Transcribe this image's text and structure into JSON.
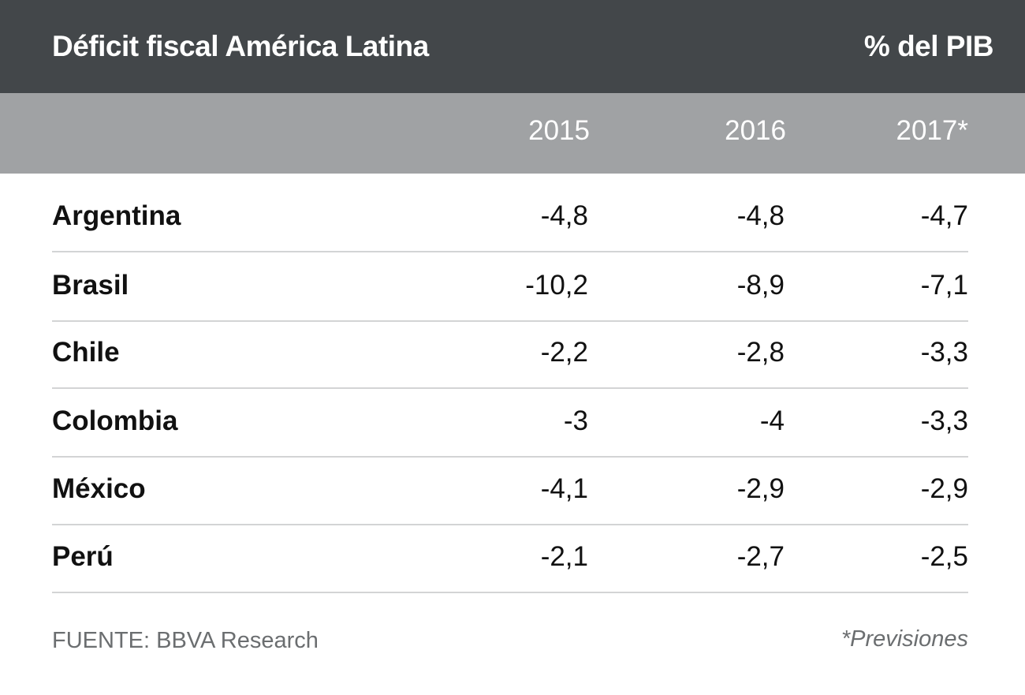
{
  "chart_data": {
    "type": "table",
    "title": "Déficit fiscal América Latina",
    "unit": "% del PIB",
    "columns": [
      "2015",
      "2016",
      "2017*"
    ],
    "rows": [
      {
        "country": "Argentina",
        "values": [
          "-4,8",
          "-4,8",
          "-4,7"
        ]
      },
      {
        "country": "Brasil",
        "values": [
          "-10,2",
          "-8,9",
          "-7,1"
        ]
      },
      {
        "country": "Chile",
        "values": [
          "-2,2",
          "-2,8",
          "-3,3"
        ]
      },
      {
        "country": "Colombia",
        "values": [
          "-3",
          "-4",
          "-3,3"
        ]
      },
      {
        "country": "México",
        "values": [
          "-4,1",
          "-2,9",
          "-2,9"
        ]
      },
      {
        "country": "Perú",
        "values": [
          "-2,1",
          "-2,7",
          "-2,5"
        ]
      }
    ],
    "source": "FUENTE: BBVA Research",
    "note": "*Previsiones"
  },
  "colors": {
    "title_bar": "#43474a",
    "header_bar": "#a0a2a4",
    "divider": "#d3d4d5",
    "text": "#111111",
    "footer_text": "#6b6e70"
  }
}
